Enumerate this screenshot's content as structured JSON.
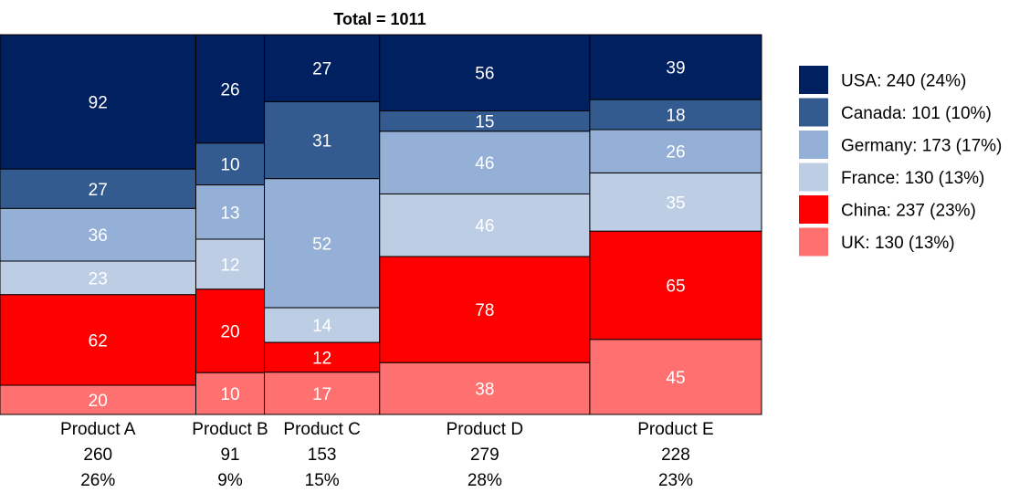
{
  "chart_data": {
    "type": "mosaic",
    "title": "Total = 1011",
    "categories": [
      {
        "name": "Product A",
        "total": 260,
        "total_label": "260",
        "pct_label": "26%"
      },
      {
        "name": "Product B",
        "total": 91,
        "total_label": "91",
        "pct_label": "9%"
      },
      {
        "name": "Product C",
        "total": 153,
        "total_label": "153",
        "pct_label": "15%"
      },
      {
        "name": "Product D",
        "total": 279,
        "total_label": "279",
        "pct_label": "28%"
      },
      {
        "name": "Product E",
        "total": 228,
        "total_label": "228",
        "pct_label": "23%"
      }
    ],
    "series": [
      {
        "name": "USA",
        "color": "#002060",
        "label_color": "#ffffff",
        "values": [
          92,
          26,
          27,
          56,
          39
        ],
        "legend_label": "USA: 240 (24%)"
      },
      {
        "name": "Canada",
        "color": "#335b8f",
        "label_color": "#ffffff",
        "values": [
          27,
          10,
          31,
          15,
          18
        ],
        "legend_label": "Canada: 101 (10%)"
      },
      {
        "name": "Germany",
        "color": "#94b0d6",
        "label_color": "#000000",
        "values": [
          36,
          13,
          52,
          46,
          26
        ],
        "legend_label": "Germany: 173 (17%)"
      },
      {
        "name": "France",
        "color": "#bccde4",
        "label_color": "#000000",
        "values": [
          23,
          12,
          14,
          46,
          35
        ],
        "legend_label": "France: 130 (13%)"
      },
      {
        "name": "China",
        "color": "#ff0000",
        "label_color": "#ffffff",
        "values": [
          62,
          20,
          12,
          78,
          65
        ],
        "legend_label": "China: 237 (23%)"
      },
      {
        "name": "UK",
        "color": "#ff7070",
        "label_color": "#ffffff",
        "values": [
          20,
          10,
          17,
          38,
          45
        ],
        "legend_label": "UK: 130 (13%)"
      }
    ],
    "legend_position": "right",
    "grid": false
  }
}
